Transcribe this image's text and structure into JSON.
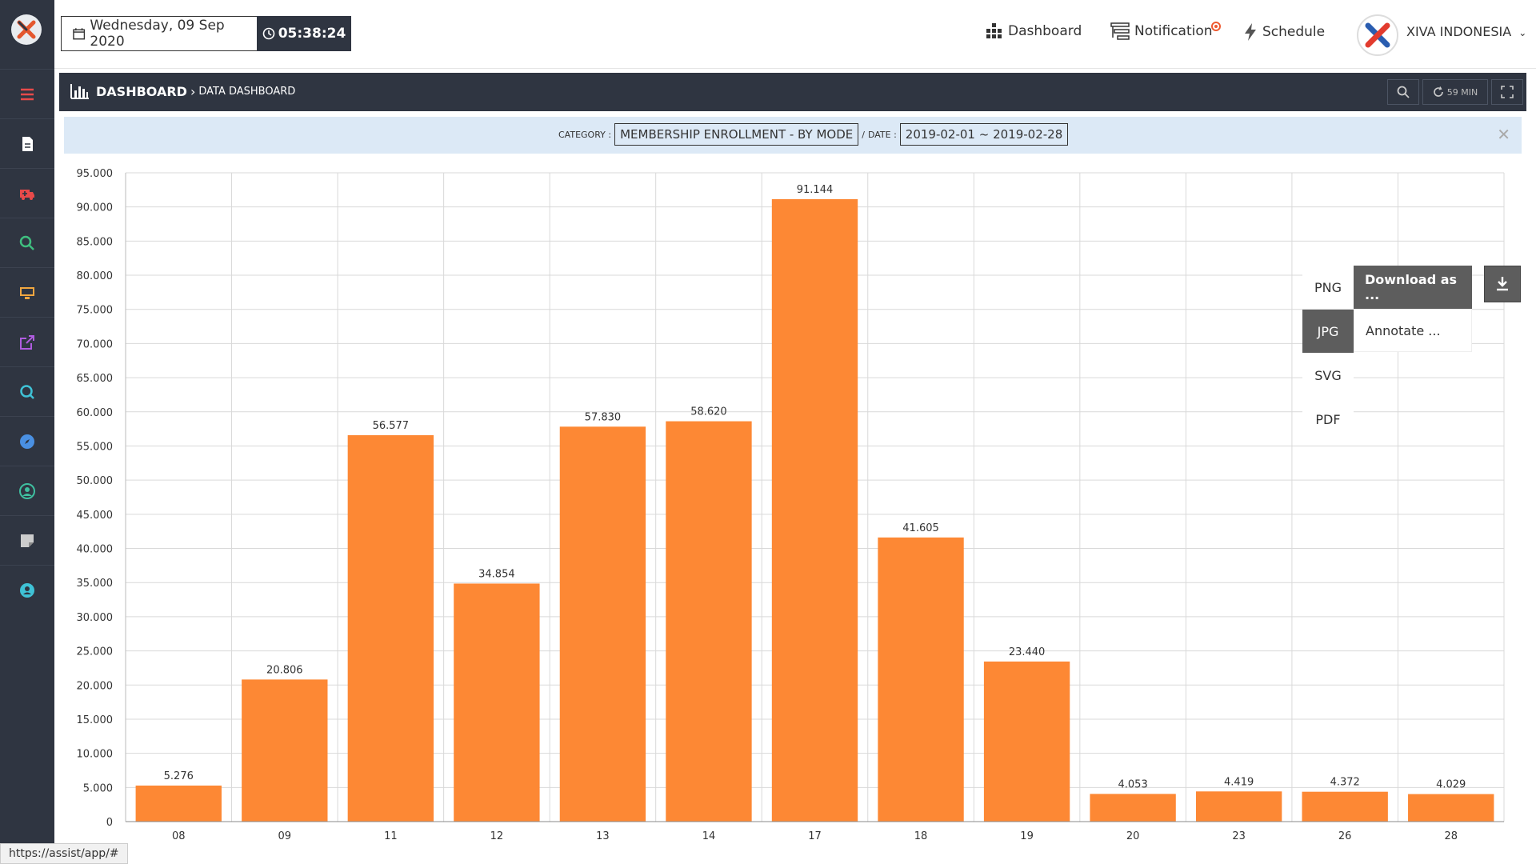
{
  "header": {
    "date": "Wednesday, 09 Sep 2020",
    "time": "05:38:24",
    "nav": [
      {
        "label": "Dashboard",
        "icon": "dashboard-grid-icon"
      },
      {
        "label": "Notification",
        "icon": "notification-icon"
      },
      {
        "label": "Schedule",
        "icon": "bolt-icon"
      }
    ],
    "company": "XIVA INDONESIA"
  },
  "sidebar": {
    "items": [
      {
        "icon": "menu-icon",
        "color": "#e84a4a"
      },
      {
        "icon": "document-icon",
        "color": "#ffffff"
      },
      {
        "icon": "ambulance-icon",
        "color": "#e84a4a"
      },
      {
        "icon": "search-icon",
        "color": "#3fbf7f"
      },
      {
        "icon": "monitor-icon",
        "color": "#f0a640"
      },
      {
        "icon": "external-link-icon",
        "color": "#b05ce0"
      },
      {
        "icon": "refresh-search-icon",
        "color": "#3fc2d6"
      },
      {
        "icon": "compass-icon",
        "color": "#4a90e2"
      },
      {
        "icon": "user-circle-icon",
        "color": "#3fbfa0"
      },
      {
        "icon": "note-icon",
        "color": "#cccccc"
      },
      {
        "icon": "user-settings-icon",
        "color": "#3fc2d6"
      }
    ]
  },
  "panel": {
    "title": "DASHBOARD",
    "subtitle": "DATA DASHBOARD",
    "refresh_label": "59 MIN",
    "filter": {
      "category_label": "CATEGORY :",
      "category_value": "MEMBERSHIP ENROLLMENT - BY MODE",
      "separator": "/",
      "date_label": "DATE :",
      "date_value": "2019-02-01 ~ 2019-02-28"
    }
  },
  "export_menu": {
    "formats": [
      {
        "label": "PNG",
        "active": false
      },
      {
        "label": "JPG",
        "active": true
      },
      {
        "label": "SVG",
        "active": false
      },
      {
        "label": "PDF",
        "active": false
      }
    ],
    "actions": [
      "Download as ...",
      "Annotate ..."
    ]
  },
  "chart_data": {
    "type": "bar",
    "categories": [
      "08",
      "09",
      "11",
      "12",
      "13",
      "14",
      "17",
      "18",
      "19",
      "20",
      "23",
      "26",
      "28"
    ],
    "values": [
      5276,
      20806,
      56577,
      34854,
      57830,
      58620,
      91144,
      41605,
      23440,
      4053,
      4419,
      4372,
      4029
    ],
    "value_labels": [
      "5.276",
      "20.806",
      "56.577",
      "34.854",
      "57.830",
      "58.620",
      "91.144",
      "41.605",
      "23.440",
      "4.053",
      "4.419",
      "4.372",
      "4.029"
    ],
    "y_ticks": [
      "0",
      "5.000",
      "10.000",
      "15.000",
      "20.000",
      "25.000",
      "30.000",
      "35.000",
      "40.000",
      "45.000",
      "50.000",
      "55.000",
      "60.000",
      "65.000",
      "70.000",
      "75.000",
      "80.000",
      "85.000",
      "90.000",
      "95.000"
    ],
    "ylim": [
      0,
      95000
    ],
    "grid": true,
    "bar_color": "#fd8834"
  },
  "status_url": "https://assist/app/#"
}
